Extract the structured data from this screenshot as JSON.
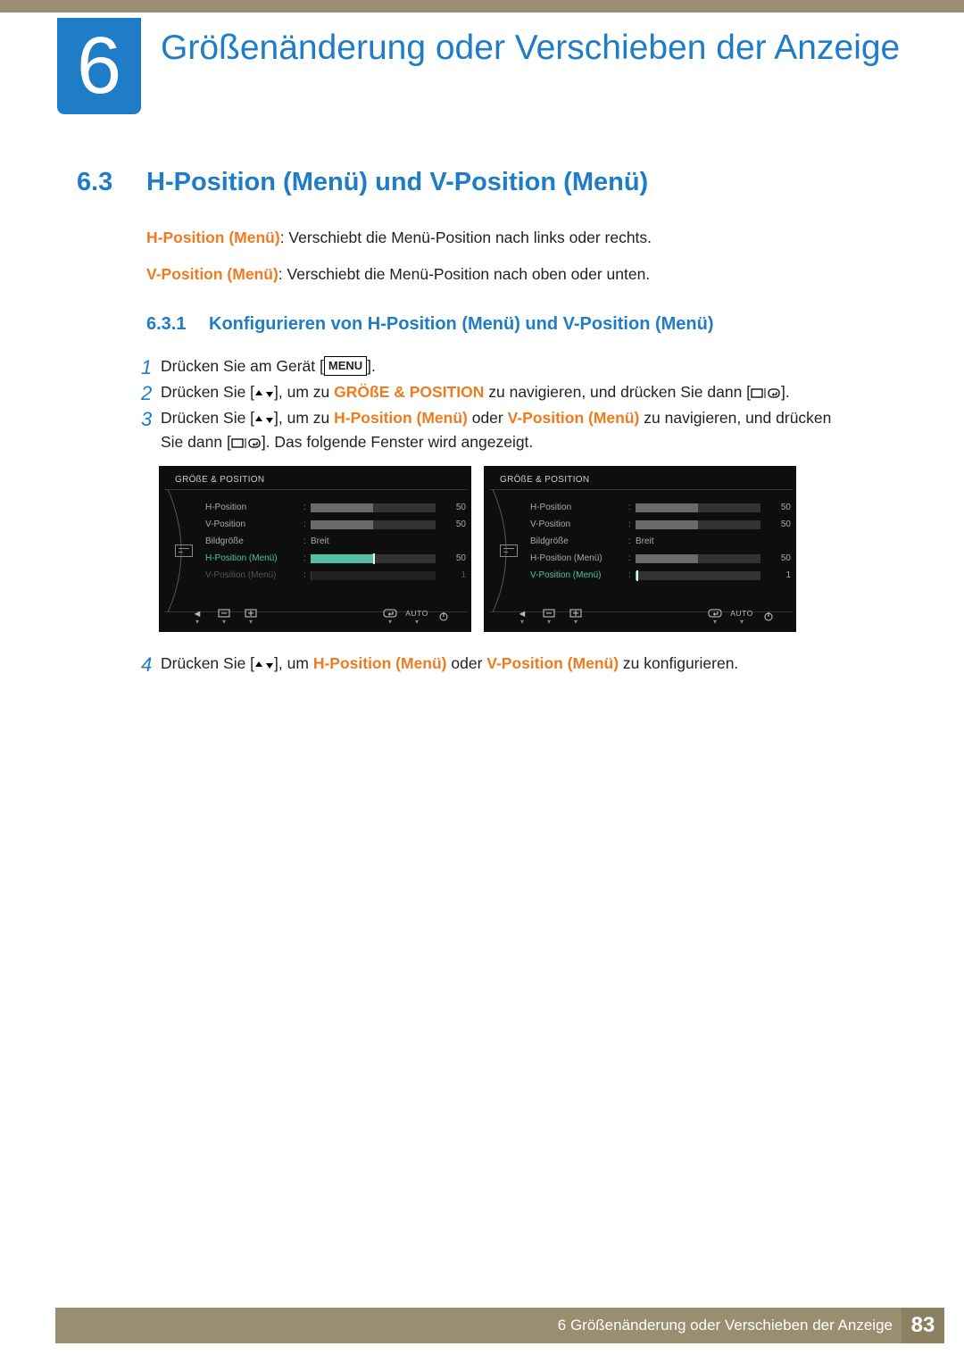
{
  "colors": {
    "accent": "#1f7cc6",
    "orange": "#f07a1f",
    "band": "#998f70"
  },
  "chapter": {
    "number": "6",
    "title": "Größenänderung oder Verschieben der Anzeige"
  },
  "section": {
    "number": "6.3",
    "title": "H-Position (Menü) und V-Position (Menü)"
  },
  "desc": {
    "h_bold": "H-Position (Menü)",
    "h_rest": ": Verschiebt die Menü-Position nach links oder rechts.",
    "v_bold": "V-Position (Menü)",
    "v_rest": ": Verschiebt die Menü-Position nach oben oder unten."
  },
  "subsection": {
    "number": "6.3.1",
    "title": "Konfigurieren von H-Position (Menü) und V-Position (Menü)"
  },
  "steps": {
    "s1_pre": "Drücken Sie am Gerät [",
    "menu_btn": "MENU",
    "s1_post": "].",
    "s2_a": "Drücken Sie [",
    "s2_b": "], um zu ",
    "s2_orange": "GRÖßE & POSITION",
    "s2_c": " zu navigieren, und drücken Sie dann [",
    "s2_d": "].",
    "s3_a": "Drücken Sie [",
    "s3_b": "], um zu ",
    "s3_hm": "H-Position (Menü)",
    "s3_or": " oder ",
    "s3_vm": "V-Position (Menü)",
    "s3_c": " zu navigieren, und drücken Sie dann [",
    "s3_d": "]. Das folgende Fenster wird angezeigt.",
    "s4_a": "Drücken Sie [",
    "s4_b": "], um ",
    "s4_hm": "H-Position (Menü)",
    "s4_or": " oder ",
    "s4_vm": "V-Position (Menü)",
    "s4_c": " zu konfigurieren."
  },
  "panel_common": {
    "title": "GRÖßE & POSITION",
    "rows": [
      {
        "label": "H-Position",
        "type": "slider",
        "value": 50,
        "max": 100
      },
      {
        "label": "V-Position",
        "type": "slider",
        "value": 50,
        "max": 100
      },
      {
        "label": "Bildgröße",
        "type": "text",
        "text": "Breit"
      },
      {
        "label": "H-Position (Menü)",
        "type": "slider",
        "value": 50,
        "max": 100
      },
      {
        "label": "V-Position (Menü)",
        "type": "slider",
        "value": 1,
        "max": 100
      }
    ],
    "btns_auto": "AUTO"
  },
  "panels": {
    "left_highlight": 3,
    "right_highlight": 4
  },
  "footer": {
    "text": "6 Größenänderung oder Verschieben der Anzeige",
    "page": "83"
  }
}
